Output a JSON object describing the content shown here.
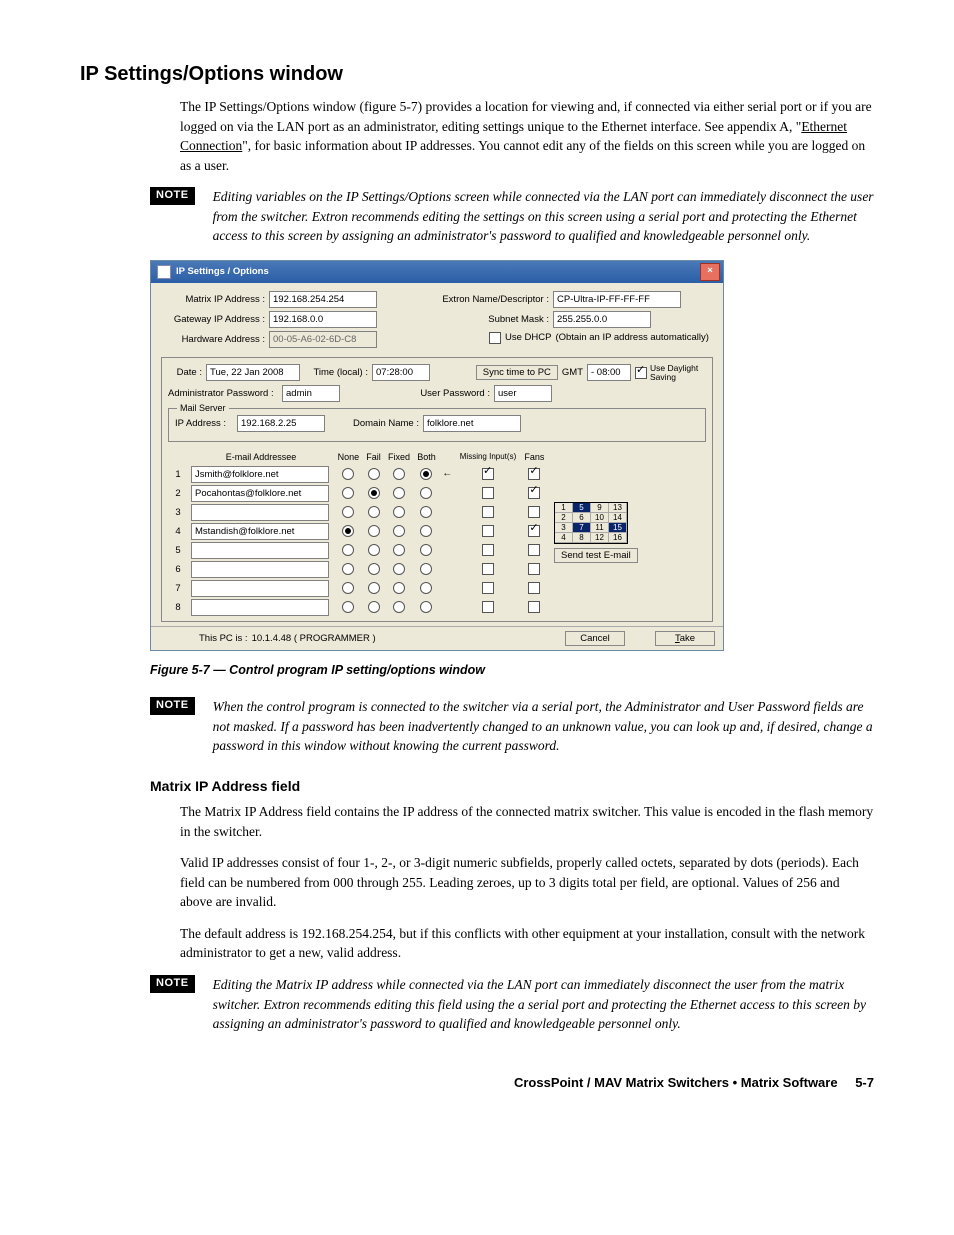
{
  "section_title": "IP Settings/Options window",
  "intro_para": "The IP Settings/Options window (figure 5-7) provides a location for viewing and, if connected via either serial port or if you are logged on via the LAN port as an administrator, editing settings unique to the Ethernet interface.  See appendix A, \"",
  "intro_link": "Ethernet Connection",
  "intro_para_2": "\", for basic information about IP addresses.  You cannot edit any of the fields on this screen while you are logged on as a user.",
  "note_label": "NOTE",
  "note1": "Editing variables on the IP Settings/Options screen while connected via the LAN port can immediately disconnect the user from the switcher.  Extron recommends editing the settings on this screen using a serial port and protecting the Ethernet access to this screen by assigning an administrator's password to qualified and knowledgeable personnel only.",
  "win": {
    "title": "IP Settings / Options",
    "labels": {
      "matrix_ip": "Matrix IP Address :",
      "gateway_ip": "Gateway IP Address :",
      "hardware": "Hardware Address :",
      "extron_name": "Extron Name/Descriptor :",
      "subnet": "Subnet Mask :",
      "use_dhcp": "Use DHCP",
      "dhcp_hint": "(Obtain an IP address automatically)",
      "date": "Date :",
      "time": "Time (local) :",
      "sync_btn": "Sync time to PC",
      "gmt": "GMT",
      "daylight": "Use Daylight Saving",
      "admin_pw": "Administrator Password :",
      "user_pw": "User Password :",
      "mail_server": "Mail Server",
      "mail_ip": "IP Address :",
      "domain": "Domain Name :",
      "email_addr": "E-mail Addressee",
      "none": "None",
      "fail": "Fail",
      "fixed": "Fixed",
      "both": "Both",
      "missing": "Missing Input(s)",
      "fans": "Fans",
      "send_test": "Send test E-mail",
      "this_pc": "This PC is :",
      "cancel": "Cancel",
      "take": "Take"
    },
    "values": {
      "matrix_ip": "192.168.254.254",
      "gateway_ip": "192.168.0.0",
      "hardware": "00-05-A6-02-6D-C8",
      "extron_name": "CP-Ultra-IP-FF-FF-FF",
      "subnet": "255.255.0.0",
      "date": "Tue, 22 Jan 2008",
      "time": "07:28:00",
      "gmt": "- 08:00",
      "admin_pw": "admin",
      "user_pw": "user",
      "mail_ip": "192.168.2.25",
      "domain": "folklore.net",
      "this_pc": "10.1.4.48  ( PROGRAMMER )"
    },
    "emails": [
      {
        "n": "1",
        "addr": "Jsmith@folklore.net",
        "sel": "both",
        "miss": true,
        "fans": true
      },
      {
        "n": "2",
        "addr": "Pocahontas@folklore.net",
        "sel": "fail",
        "miss": false,
        "fans": true
      },
      {
        "n": "3",
        "addr": "",
        "sel": "",
        "miss": false,
        "fans": false
      },
      {
        "n": "4",
        "addr": "Mstandish@folklore.net",
        "sel": "none",
        "miss": false,
        "fans": true
      },
      {
        "n": "5",
        "addr": "",
        "sel": "",
        "miss": false,
        "fans": false
      },
      {
        "n": "6",
        "addr": "",
        "sel": "",
        "miss": false,
        "fans": false
      },
      {
        "n": "7",
        "addr": "",
        "sel": "",
        "miss": false,
        "fans": false
      },
      {
        "n": "8",
        "addr": "",
        "sel": "",
        "miss": false,
        "fans": false
      }
    ],
    "grid": [
      "1",
      "5",
      "9",
      "13",
      "2",
      "6",
      "10",
      "14",
      "3",
      "7",
      "11",
      "15",
      "4",
      "8",
      "12",
      "16"
    ],
    "grid_hl": [
      1,
      9,
      11
    ]
  },
  "figure_caption": "Figure 5-7 — Control program IP setting/options window",
  "note2": "When the control program is connected to the switcher via a serial port, the Administrator and User Password fields are not masked.  If a password has been inadvertently changed to an unknown value, you can look up and, if desired, change a password in this window without knowing the current password.",
  "subsection_title": "Matrix IP Address field",
  "para2": "The Matrix IP Address field contains the IP address of the connected matrix switcher.  This value is encoded in the flash memory in the switcher.",
  "para3": "Valid IP addresses consist of four 1-, 2-, or 3-digit numeric subfields, properly called octets, separated by dots (periods).  Each field can be numbered from 000 through 255.  Leading zeroes, up to 3 digits total per field, are optional.  Values of 256 and above are invalid.",
  "para4": "The default address is 192.168.254.254, but if this conflicts with other equipment at your installation, consult with the network administrator to get a new, valid address.",
  "note3": "Editing the Matrix IP address while connected via the LAN port can immediately disconnect the user from the matrix switcher.  Extron recommends editing this field using the a serial port and protecting the Ethernet access to this screen by assigning an administrator's password to qualified and knowledgeable personnel only.",
  "footer_text": "CrossPoint / MAV Matrix Switchers • Matrix Software",
  "page_num": "5-7"
}
